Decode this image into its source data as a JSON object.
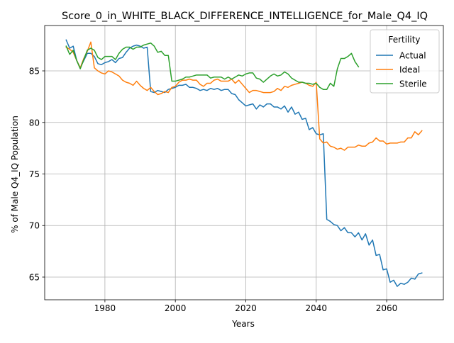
{
  "chart_data": {
    "type": "line",
    "title": "Score_0_in_WHITE_BLACK_DIFFERENCE_INTELLIGENCE_for_Male_Q4_IQ",
    "xlabel": "Years",
    "ylabel": "% of Male Q4_IQ Population",
    "xlim": [
      1962.9,
      2076.1
    ],
    "ylim": [
      62.8,
      89.4
    ],
    "xticks": [
      1980,
      2000,
      2020,
      2040,
      2060
    ],
    "yticks": [
      65,
      70,
      75,
      80,
      85
    ],
    "grid": true,
    "legend": {
      "title": "Fertility",
      "position": "top-right"
    },
    "series": [
      {
        "name": "Actual",
        "color": "#1f77b4",
        "x": [
          1969,
          1970,
          1971,
          1972,
          1973,
          1974,
          1975,
          1976,
          1977,
          1978,
          1979,
          1980,
          1981,
          1982,
          1983,
          1984,
          1985,
          1986,
          1987,
          1988,
          1989,
          1990,
          1991,
          1992,
          1993,
          1994,
          1995,
          1996,
          1997,
          1998,
          1999,
          2000,
          2001,
          2002,
          2003,
          2004,
          2005,
          2006,
          2007,
          2008,
          2009,
          2010,
          2011,
          2012,
          2013,
          2014,
          2015,
          2016,
          2017,
          2018,
          2019,
          2020,
          2021,
          2022,
          2023,
          2024,
          2025,
          2026,
          2027,
          2028,
          2029,
          2030,
          2031,
          2032,
          2033,
          2034,
          2035,
          2036,
          2037,
          2038,
          2039,
          2040,
          2041,
          2042,
          2043,
          2044,
          2045,
          2046,
          2047,
          2048,
          2049,
          2050,
          2051,
          2052,
          2053,
          2054,
          2055,
          2056,
          2057,
          2058,
          2059,
          2060,
          2061,
          2062,
          2063,
          2064,
          2065,
          2066,
          2067,
          2068,
          2069,
          2070
        ],
        "y": [
          88.0,
          87.2,
          87.4,
          86.0,
          85.3,
          86.0,
          86.7,
          86.7,
          86.4,
          85.7,
          85.6,
          85.8,
          85.9,
          86.1,
          85.8,
          86.2,
          86.3,
          86.8,
          87.2,
          87.4,
          87.5,
          87.4,
          87.2,
          87.3,
          83.0,
          82.9,
          83.1,
          83.0,
          82.9,
          83.2,
          83.3,
          83.4,
          83.6,
          83.6,
          83.7,
          83.4,
          83.4,
          83.3,
          83.1,
          83.2,
          83.1,
          83.3,
          83.2,
          83.3,
          83.1,
          83.2,
          83.2,
          82.8,
          82.7,
          82.2,
          81.9,
          81.6,
          81.7,
          81.8,
          81.3,
          81.7,
          81.5,
          81.8,
          81.8,
          81.5,
          81.5,
          81.3,
          81.6,
          81.0,
          81.5,
          80.8,
          81.0,
          80.3,
          80.4,
          79.3,
          79.5,
          78.9,
          78.8,
          78.9,
          70.6,
          70.4,
          70.1,
          70.0,
          69.5,
          69.8,
          69.3,
          69.3,
          68.9,
          69.3,
          68.6,
          69.2,
          68.1,
          68.6,
          67.1,
          67.2,
          65.7,
          65.8,
          64.5,
          64.7,
          64.1,
          64.4,
          64.3,
          64.5,
          64.9,
          64.8,
          65.3,
          65.4
        ]
      },
      {
        "name": "Ideal",
        "color": "#ff7f0e",
        "x": [
          1969,
          1970,
          1971,
          1972,
          1973,
          1974,
          1975,
          1976,
          1977,
          1978,
          1979,
          1980,
          1981,
          1982,
          1983,
          1984,
          1985,
          1986,
          1987,
          1988,
          1989,
          1990,
          1991,
          1992,
          1993,
          1994,
          1995,
          1996,
          1997,
          1998,
          1999,
          2000,
          2001,
          2002,
          2003,
          2004,
          2005,
          2006,
          2007,
          2008,
          2009,
          2010,
          2011,
          2012,
          2013,
          2014,
          2015,
          2016,
          2017,
          2018,
          2019,
          2020,
          2021,
          2022,
          2023,
          2024,
          2025,
          2026,
          2027,
          2028,
          2029,
          2030,
          2031,
          2032,
          2033,
          2034,
          2035,
          2036,
          2037,
          2038,
          2039,
          2040,
          2041,
          2042,
          2043,
          2044,
          2045,
          2046,
          2047,
          2048,
          2049,
          2050,
          2051,
          2052,
          2053,
          2054,
          2055,
          2056,
          2057,
          2058,
          2059,
          2060,
          2061,
          2062,
          2063,
          2064,
          2065,
          2066,
          2067,
          2068,
          2069,
          2070
        ],
        "y": [
          87.3,
          87.1,
          86.8,
          86.0,
          85.3,
          86.2,
          86.9,
          87.8,
          85.3,
          85.0,
          84.8,
          84.7,
          85.0,
          84.9,
          84.7,
          84.5,
          84.1,
          83.9,
          83.8,
          83.6,
          84.0,
          83.6,
          83.3,
          83.1,
          83.4,
          83.0,
          82.7,
          82.8,
          83.0,
          82.9,
          83.4,
          83.5,
          83.9,
          84.1,
          84.1,
          84.2,
          84.1,
          84.1,
          83.7,
          83.5,
          83.8,
          83.8,
          84.1,
          84.2,
          84.0,
          84.0,
          84.0,
          84.2,
          83.8,
          84.1,
          83.7,
          83.3,
          82.9,
          83.1,
          83.1,
          83.0,
          82.9,
          82.9,
          82.9,
          83.0,
          83.3,
          83.1,
          83.5,
          83.4,
          83.6,
          83.7,
          83.8,
          83.9,
          83.8,
          83.6,
          83.5,
          83.9,
          78.4,
          78.0,
          78.1,
          77.7,
          77.6,
          77.4,
          77.5,
          77.3,
          77.6,
          77.6,
          77.6,
          77.8,
          77.7,
          77.7,
          78.0,
          78.1,
          78.5,
          78.2,
          78.2,
          77.9,
          78.0,
          78.0,
          78.0,
          78.1,
          78.1,
          78.5,
          78.5,
          79.1,
          78.8,
          79.2
        ]
      },
      {
        "name": "Sterile",
        "color": "#2ca02c",
        "x": [
          1969,
          1970,
          1971,
          1972,
          1973,
          1974,
          1975,
          1976,
          1977,
          1978,
          1979,
          1980,
          1981,
          1982,
          1983,
          1984,
          1985,
          1986,
          1987,
          1988,
          1989,
          1990,
          1991,
          1992,
          1993,
          1994,
          1995,
          1996,
          1997,
          1998,
          1999,
          2000,
          2001,
          2002,
          2003,
          2004,
          2005,
          2006,
          2007,
          2008,
          2009,
          2010,
          2011,
          2012,
          2013,
          2014,
          2015,
          2016,
          2017,
          2018,
          2019,
          2020,
          2021,
          2022,
          2023,
          2024,
          2025,
          2026,
          2027,
          2028,
          2029,
          2030,
          2031,
          2032,
          2033,
          2034,
          2035,
          2036,
          2037,
          2038,
          2039,
          2040,
          2041,
          2042,
          2043,
          2044,
          2045,
          2046,
          2047,
          2048,
          2049,
          2050,
          2051,
          2052
        ],
        "y": [
          87.4,
          86.6,
          87.0,
          86.0,
          85.2,
          86.1,
          87.0,
          87.2,
          87.0,
          86.3,
          86.1,
          86.4,
          86.4,
          86.4,
          86.1,
          86.7,
          87.1,
          87.3,
          87.3,
          87.1,
          87.3,
          87.3,
          87.5,
          87.6,
          87.7,
          87.4,
          86.8,
          86.9,
          86.5,
          86.5,
          84.0,
          84.0,
          84.1,
          84.2,
          84.4,
          84.4,
          84.5,
          84.6,
          84.6,
          84.6,
          84.6,
          84.3,
          84.4,
          84.4,
          84.4,
          84.2,
          84.4,
          84.2,
          84.4,
          84.6,
          84.5,
          84.7,
          84.8,
          84.8,
          84.3,
          84.2,
          83.9,
          84.2,
          84.5,
          84.7,
          84.5,
          84.6,
          84.9,
          84.7,
          84.3,
          84.1,
          83.9,
          83.9,
          83.8,
          83.8,
          83.7,
          83.8,
          83.4,
          83.2,
          83.2,
          83.8,
          83.5,
          85.2,
          86.2,
          86.2,
          86.4,
          86.7,
          85.9,
          85.4
        ]
      }
    ]
  }
}
